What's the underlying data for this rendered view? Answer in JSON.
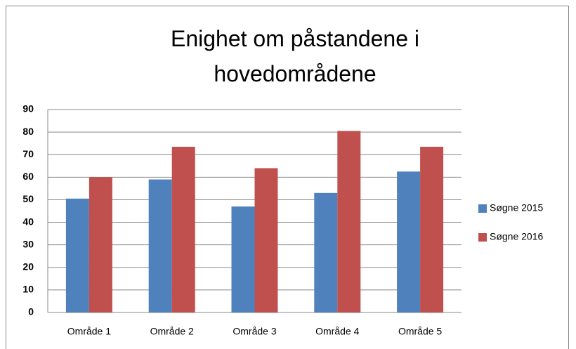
{
  "chart_data": {
    "type": "bar",
    "title": "Enighet om påstandene i hovedområdene",
    "categories": [
      "Område 1",
      "Område 2",
      "Område 3",
      "Område 4",
      "Område 5"
    ],
    "series": [
      {
        "name": "Søgne 2015",
        "color": "#4f81bd",
        "values": [
          50.5,
          59,
          47,
          53,
          62.5
        ]
      },
      {
        "name": "Søgne 2016",
        "color": "#c0504d",
        "values": [
          60,
          73.5,
          64,
          80.5,
          73.5
        ]
      }
    ],
    "ylim": [
      0,
      90
    ],
    "yticks": [
      0,
      10,
      20,
      30,
      40,
      50,
      60,
      70,
      80,
      90
    ],
    "grid": true,
    "legend": "right"
  }
}
